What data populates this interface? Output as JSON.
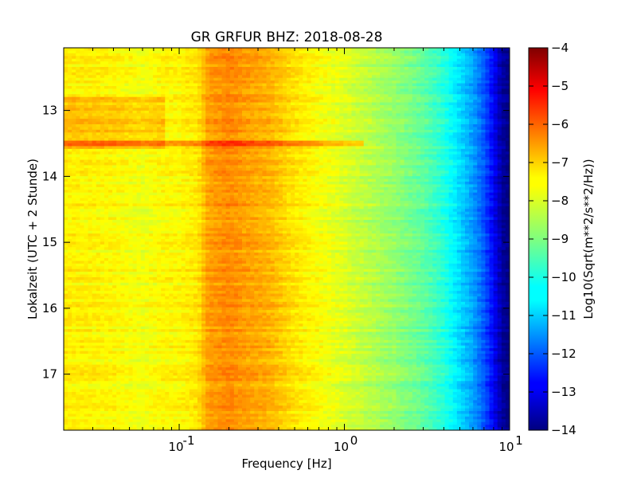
{
  "chart_data": {
    "type": "heatmap",
    "title": "GR GRFUR BHZ: 2018-08-28",
    "xlabel": "Frequency [Hz]",
    "ylabel": "Lokalzeit (UTC + 2 Stunde)",
    "x_scale": "log",
    "xlim": [
      0.02,
      10
    ],
    "ylim": [
      17.85,
      12.05
    ],
    "x_ticks": [
      {
        "value": 0.1,
        "base": "10",
        "exp": "-1"
      },
      {
        "value": 1,
        "base": "10",
        "exp": "0"
      },
      {
        "value": 10,
        "base": "10",
        "exp": "1"
      }
    ],
    "y_ticks": [
      {
        "value": 13,
        "label": "13"
      },
      {
        "value": 14,
        "label": "14"
      },
      {
        "value": 15,
        "label": "15"
      },
      {
        "value": 16,
        "label": "16"
      },
      {
        "value": 17,
        "label": "17"
      }
    ],
    "colorbar": {
      "label": "Log10(Sqrt(m**2/s**2/Hz))",
      "colormap": "jet",
      "range": [
        -14,
        -4
      ],
      "ticks": [
        {
          "value": -4,
          "label": "−4"
        },
        {
          "value": -5,
          "label": "−5"
        },
        {
          "value": -6,
          "label": "−6"
        },
        {
          "value": -7,
          "label": "−7"
        },
        {
          "value": -8,
          "label": "−8"
        },
        {
          "value": -9,
          "label": "−9"
        },
        {
          "value": -10,
          "label": "−10"
        },
        {
          "value": -11,
          "label": "−11"
        },
        {
          "value": -12,
          "label": "−12"
        },
        {
          "value": -13,
          "label": "−13"
        },
        {
          "value": -14,
          "label": "−14"
        }
      ]
    },
    "spectrum_profile": [
      {
        "f": 0.02,
        "v": -7.6
      },
      {
        "f": 0.04,
        "v": -7.7
      },
      {
        "f": 0.06,
        "v": -7.9
      },
      {
        "f": 0.08,
        "v": -7.7
      },
      {
        "f": 0.1,
        "v": -7.7
      },
      {
        "f": 0.13,
        "v": -7.5
      },
      {
        "f": 0.15,
        "v": -6.8
      },
      {
        "f": 0.2,
        "v": -6.6
      },
      {
        "f": 0.25,
        "v": -6.8
      },
      {
        "f": 0.35,
        "v": -7.0
      },
      {
        "f": 0.5,
        "v": -7.5
      },
      {
        "f": 0.7,
        "v": -7.8
      },
      {
        "f": 1.0,
        "v": -8.1
      },
      {
        "f": 1.5,
        "v": -8.5
      },
      {
        "f": 2.0,
        "v": -8.8
      },
      {
        "f": 3.0,
        "v": -9.3
      },
      {
        "f": 4.0,
        "v": -9.9
      },
      {
        "f": 5.0,
        "v": -10.6
      },
      {
        "f": 6.0,
        "v": -11.2
      },
      {
        "f": 7.0,
        "v": -11.9
      },
      {
        "f": 8.0,
        "v": -12.8
      },
      {
        "f": 9.0,
        "v": -13.7
      },
      {
        "f": 10.0,
        "v": -14.0
      }
    ],
    "events": [
      {
        "time_start": 12.8,
        "time_end": 13.6,
        "f_max": 0.08,
        "offset": 0.5
      },
      {
        "time_start": 13.45,
        "time_end": 13.55,
        "f_max": 1.3,
        "offset": 1.0
      }
    ],
    "grid": false
  }
}
